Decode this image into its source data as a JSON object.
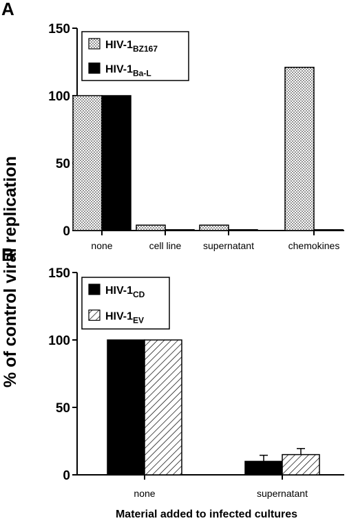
{
  "figure": {
    "ylabel": "% of control viral replication",
    "xlabel": "Material added to infected cultures"
  },
  "chart_data": [
    {
      "panel": "A",
      "type": "bar",
      "categories": [
        "none",
        "cell line",
        "supernatant",
        "chemokines"
      ],
      "ylim": [
        0,
        150
      ],
      "yticks": [
        0,
        50,
        100,
        150
      ],
      "series": [
        {
          "name": "HIV-1",
          "subscript": "BZ167",
          "fill": "dots",
          "values": [
            100,
            4,
            4,
            121
          ]
        },
        {
          "name": "HIV-1",
          "subscript": "Ba-L",
          "fill": "black",
          "values": [
            100,
            0.6,
            0.6,
            0.6
          ]
        }
      ],
      "legend_placement": "top-left"
    },
    {
      "panel": "B",
      "type": "bar",
      "categories": [
        "none",
        "supernatant"
      ],
      "ylim": [
        0,
        150
      ],
      "yticks": [
        0,
        50,
        100,
        150
      ],
      "series": [
        {
          "name": "HIV-1",
          "subscript": "CD",
          "fill": "black",
          "values": [
            100,
            10
          ],
          "errors": [
            0,
            4.5
          ]
        },
        {
          "name": "HIV-1",
          "subscript": "EV",
          "fill": "hatch",
          "values": [
            100,
            15
          ],
          "errors": [
            0,
            4.5
          ]
        }
      ],
      "legend_placement": "top-left"
    }
  ],
  "colors": {
    "ink": "#000000",
    "background": "#ffffff"
  }
}
